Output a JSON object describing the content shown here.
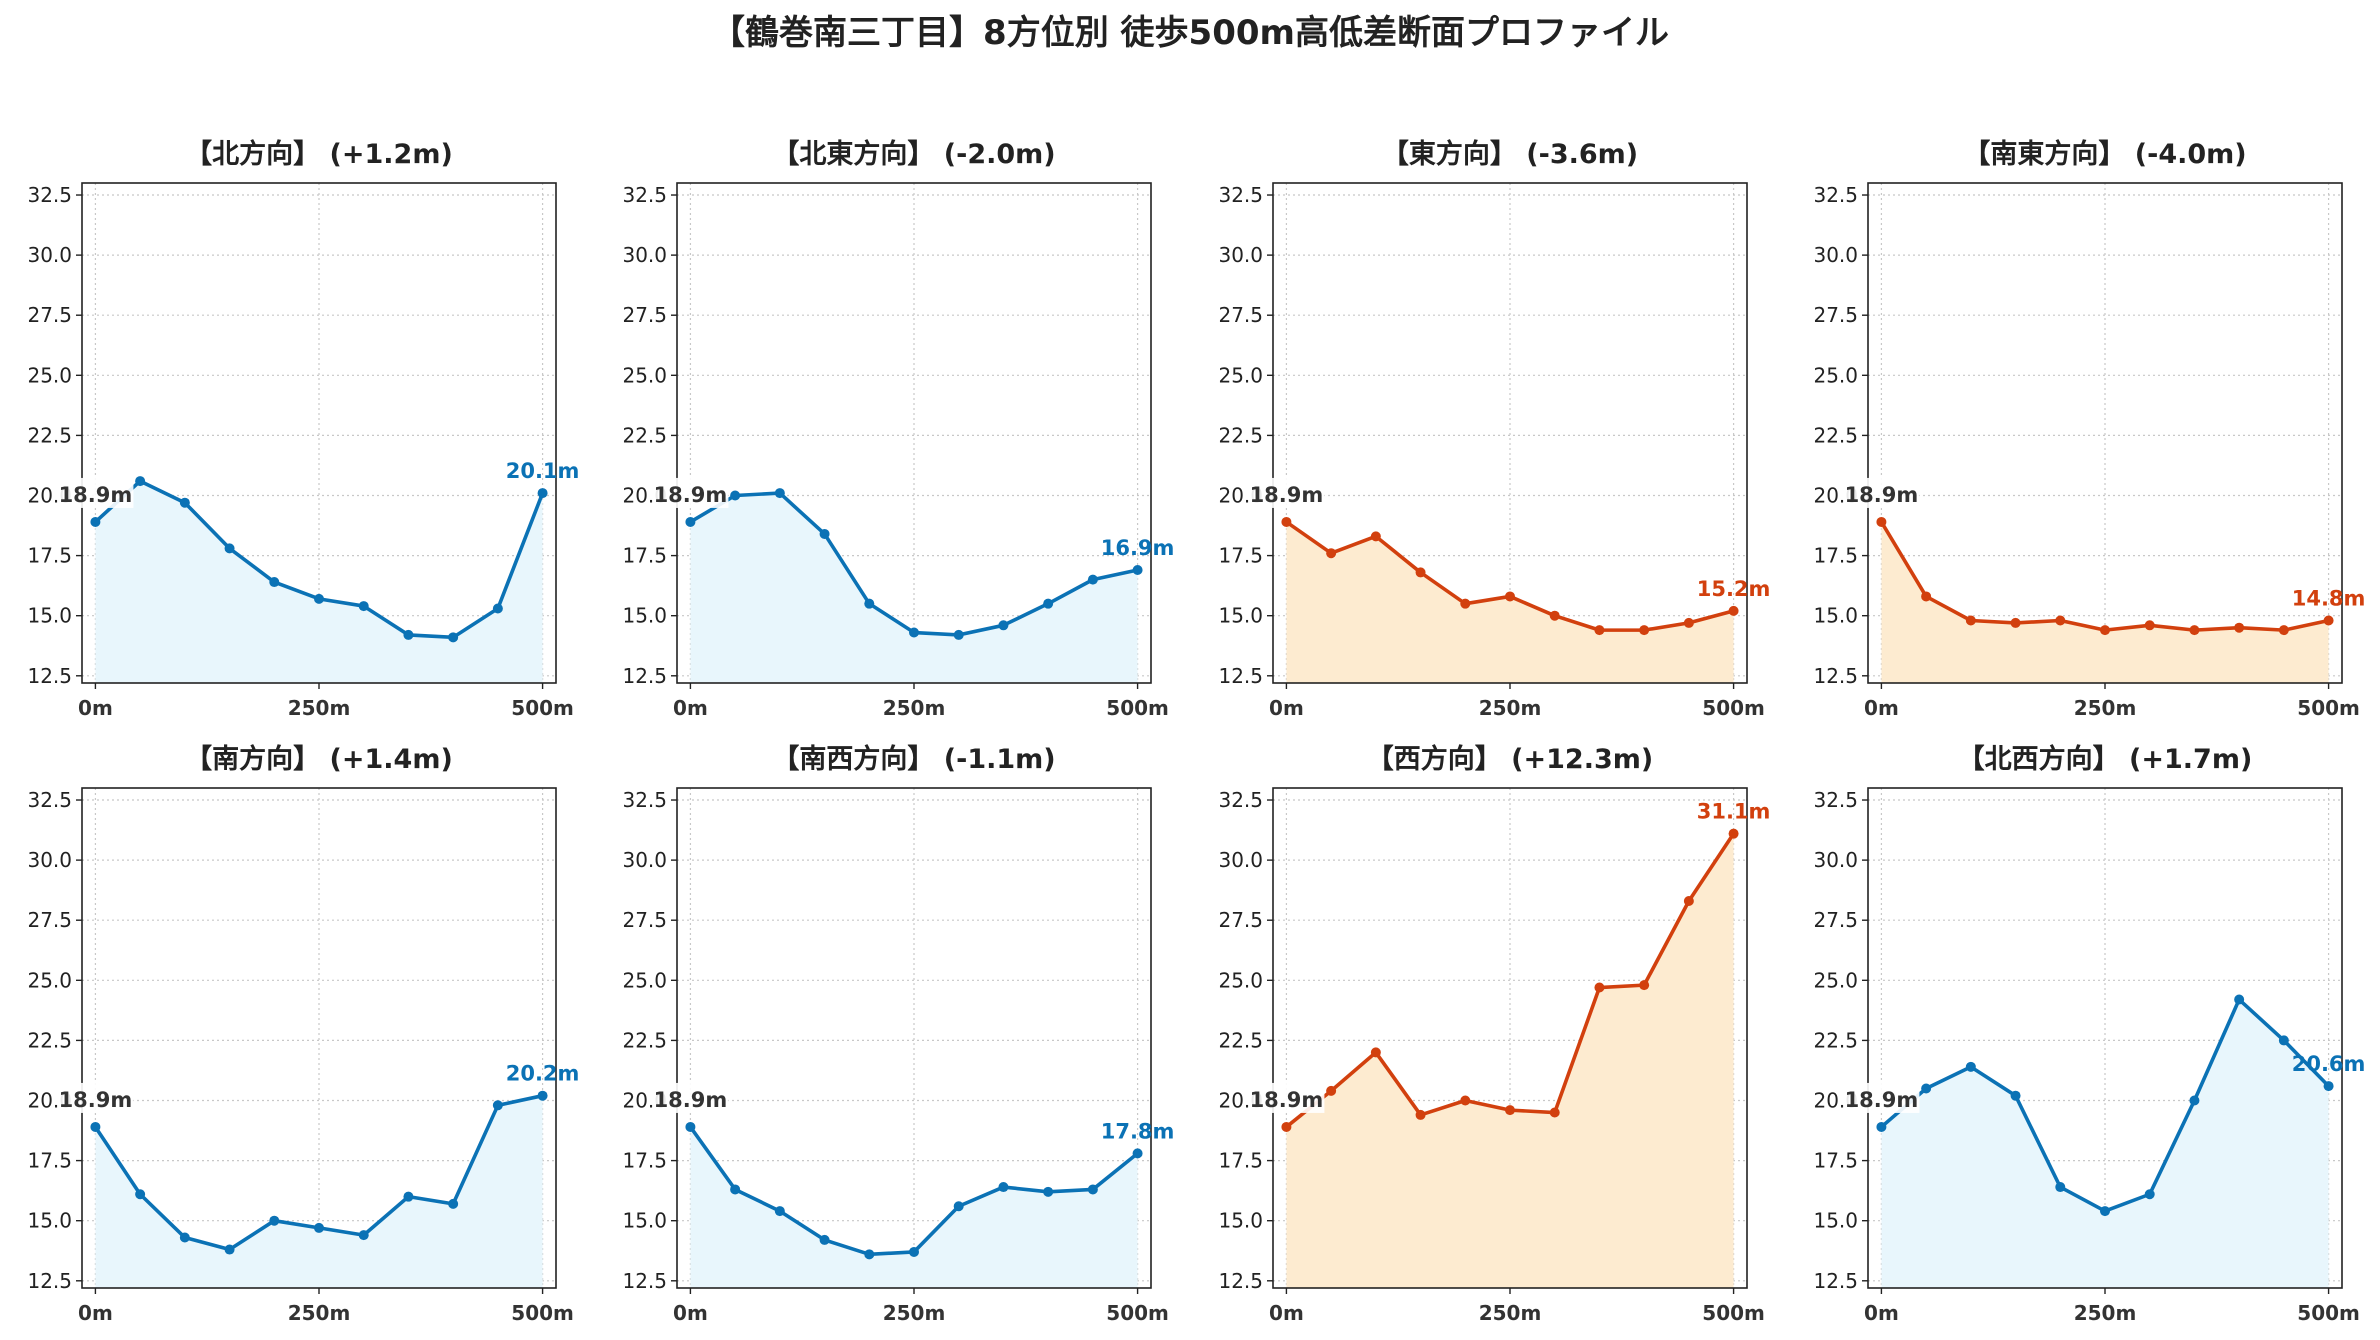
{
  "title": "【鶴巻南三丁目】8方位別 徒歩500m高低差断面プロファイル",
  "colors": {
    "blue": "#0b72b5",
    "blue_fill": "#e8f6fc",
    "red": "#d2400e",
    "red_fill": "#fdebd0",
    "start_label": "#333333"
  },
  "chart_data": [
    {
      "type": "line",
      "title": "【北方向】 (+1.2m)",
      "color_scheme": "blue",
      "x": [
        0,
        50,
        100,
        150,
        200,
        250,
        300,
        350,
        400,
        450,
        500
      ],
      "values": [
        18.9,
        20.6,
        19.7,
        17.8,
        16.4,
        15.7,
        15.4,
        14.2,
        14.1,
        15.3,
        20.1
      ],
      "start_label": "18.9m",
      "end_label": "20.1m",
      "xticks": [
        "0m",
        "250m",
        "500m"
      ],
      "yticks": [
        "12.5",
        "15.0",
        "17.5",
        "20.0",
        "22.5",
        "25.0",
        "27.5",
        "30.0",
        "32.5"
      ],
      "xlim": [
        -15,
        515
      ],
      "ylim": [
        12.2,
        33
      ],
      "grid": true
    },
    {
      "type": "line",
      "title": "【北東方向】 (-2.0m)",
      "color_scheme": "blue",
      "x": [
        0,
        50,
        100,
        150,
        200,
        250,
        300,
        350,
        400,
        450,
        500
      ],
      "values": [
        18.9,
        20.0,
        20.1,
        18.4,
        15.5,
        14.3,
        14.2,
        14.6,
        15.5,
        16.5,
        16.9
      ],
      "start_label": "18.9m",
      "end_label": "16.9m",
      "xticks": [
        "0m",
        "250m",
        "500m"
      ],
      "yticks": [
        "12.5",
        "15.0",
        "17.5",
        "20.0",
        "22.5",
        "25.0",
        "27.5",
        "30.0",
        "32.5"
      ],
      "xlim": [
        -15,
        515
      ],
      "ylim": [
        12.2,
        33
      ],
      "grid": true
    },
    {
      "type": "line",
      "title": "【東方向】 (-3.6m)",
      "color_scheme": "red",
      "x": [
        0,
        50,
        100,
        150,
        200,
        250,
        300,
        350,
        400,
        450,
        500
      ],
      "values": [
        18.9,
        17.6,
        18.3,
        16.8,
        15.5,
        15.8,
        15.0,
        14.4,
        14.4,
        14.7,
        15.2
      ],
      "start_label": "18.9m",
      "end_label": "15.2m",
      "xticks": [
        "0m",
        "250m",
        "500m"
      ],
      "yticks": [
        "12.5",
        "15.0",
        "17.5",
        "20.0",
        "22.5",
        "25.0",
        "27.5",
        "30.0",
        "32.5"
      ],
      "xlim": [
        -15,
        515
      ],
      "ylim": [
        12.2,
        33
      ],
      "grid": true
    },
    {
      "type": "line",
      "title": "【南東方向】 (-4.0m)",
      "color_scheme": "red",
      "x": [
        0,
        50,
        100,
        150,
        200,
        250,
        300,
        350,
        400,
        450,
        500
      ],
      "values": [
        18.9,
        15.8,
        14.8,
        14.7,
        14.8,
        14.4,
        14.6,
        14.4,
        14.5,
        14.4,
        14.8
      ],
      "start_label": "18.9m",
      "end_label": "14.8m",
      "xticks": [
        "0m",
        "250m",
        "500m"
      ],
      "yticks": [
        "12.5",
        "15.0",
        "17.5",
        "20.0",
        "22.5",
        "25.0",
        "27.5",
        "30.0",
        "32.5"
      ],
      "xlim": [
        -15,
        515
      ],
      "ylim": [
        12.2,
        33
      ],
      "grid": true
    },
    {
      "type": "line",
      "title": "【南方向】 (+1.4m)",
      "color_scheme": "blue",
      "x": [
        0,
        50,
        100,
        150,
        200,
        250,
        300,
        350,
        400,
        450,
        500
      ],
      "values": [
        18.9,
        16.1,
        14.3,
        13.8,
        15.0,
        14.7,
        14.4,
        16.0,
        15.7,
        19.8,
        20.2
      ],
      "start_label": "18.9m",
      "end_label": "20.2m",
      "xticks": [
        "0m",
        "250m",
        "500m"
      ],
      "yticks": [
        "12.5",
        "15.0",
        "17.5",
        "20.0",
        "22.5",
        "25.0",
        "27.5",
        "30.0",
        "32.5"
      ],
      "xlim": [
        -15,
        515
      ],
      "ylim": [
        12.2,
        33
      ],
      "grid": true
    },
    {
      "type": "line",
      "title": "【南西方向】 (-1.1m)",
      "color_scheme": "blue",
      "x": [
        0,
        50,
        100,
        150,
        200,
        250,
        300,
        350,
        400,
        450,
        500
      ],
      "values": [
        18.9,
        16.3,
        15.4,
        14.2,
        13.6,
        13.7,
        15.6,
        16.4,
        16.2,
        16.3,
        17.8
      ],
      "start_label": "18.9m",
      "end_label": "17.8m",
      "xticks": [
        "0m",
        "250m",
        "500m"
      ],
      "yticks": [
        "12.5",
        "15.0",
        "17.5",
        "20.0",
        "22.5",
        "25.0",
        "27.5",
        "30.0",
        "32.5"
      ],
      "xlim": [
        -15,
        515
      ],
      "ylim": [
        12.2,
        33
      ],
      "grid": true
    },
    {
      "type": "line",
      "title": "【西方向】 (+12.3m)",
      "color_scheme": "red",
      "x": [
        0,
        50,
        100,
        150,
        200,
        250,
        300,
        350,
        400,
        450,
        500
      ],
      "values": [
        18.9,
        20.4,
        22.0,
        19.4,
        20.0,
        19.6,
        19.5,
        24.7,
        24.8,
        28.3,
        31.1
      ],
      "start_label": "18.9m",
      "end_label": "31.1m",
      "xticks": [
        "0m",
        "250m",
        "500m"
      ],
      "yticks": [
        "12.5",
        "15.0",
        "17.5",
        "20.0",
        "22.5",
        "25.0",
        "27.5",
        "30.0",
        "32.5"
      ],
      "xlim": [
        -15,
        515
      ],
      "ylim": [
        12.2,
        33
      ],
      "grid": true
    },
    {
      "type": "line",
      "title": "【北西方向】 (+1.7m)",
      "color_scheme": "blue",
      "x": [
        0,
        50,
        100,
        150,
        200,
        250,
        300,
        350,
        400,
        450,
        500
      ],
      "values": [
        18.9,
        20.5,
        21.4,
        20.2,
        16.4,
        15.4,
        16.1,
        20.0,
        24.2,
        22.5,
        20.6
      ],
      "start_label": "18.9m",
      "end_label": "20.6m",
      "xticks": [
        "0m",
        "250m",
        "500m"
      ],
      "yticks": [
        "12.5",
        "15.0",
        "17.5",
        "20.0",
        "22.5",
        "25.0",
        "27.5",
        "30.0",
        "32.5"
      ],
      "xlim": [
        -15,
        515
      ],
      "ylim": [
        12.2,
        33
      ],
      "grid": true
    }
  ]
}
